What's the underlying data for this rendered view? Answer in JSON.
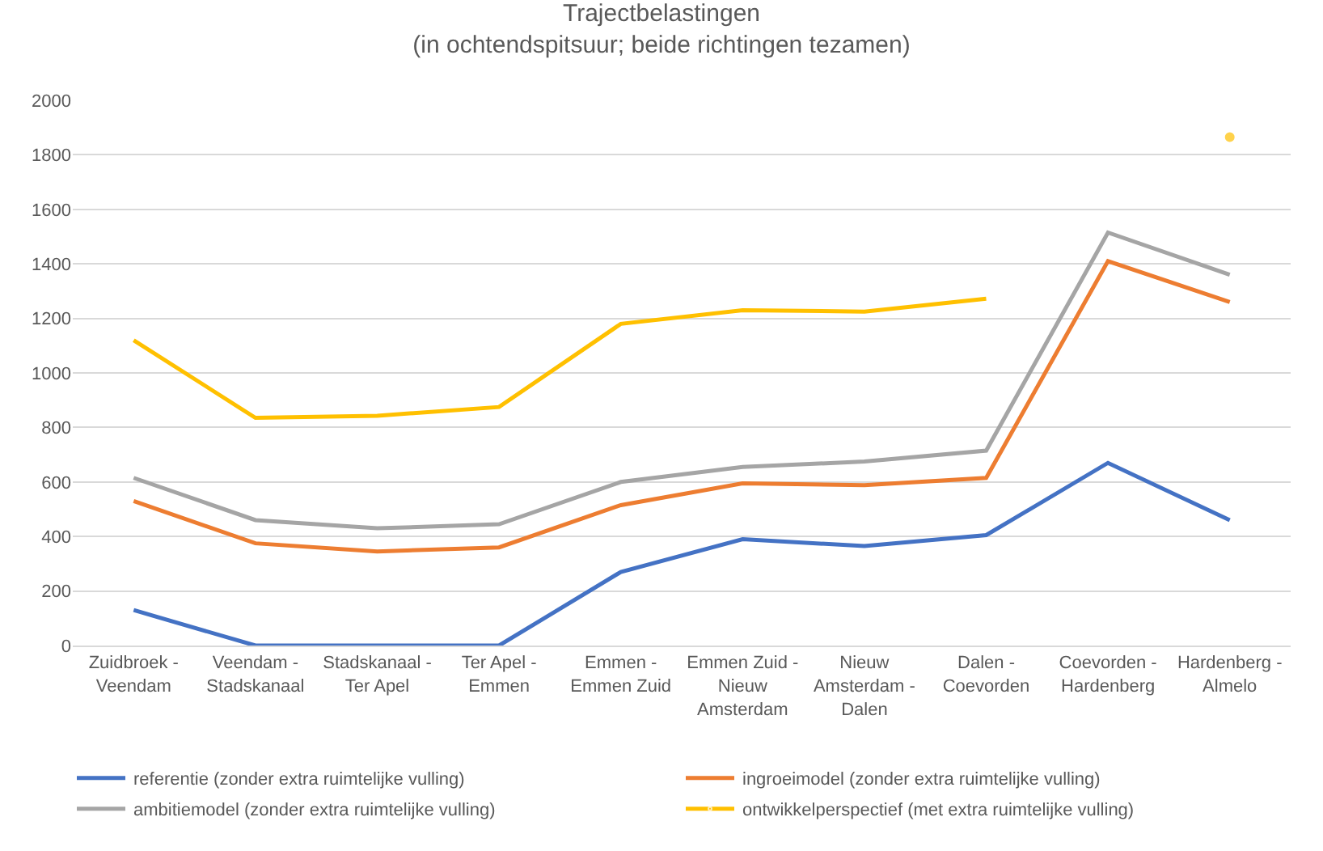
{
  "chart_data": {
    "type": "line",
    "title": "Trajectbelastingen\n(in ochtendspitsuur; beide richtingen tezamen)",
    "categories": [
      "Zuidbroek -\nVeendam",
      "Veendam -\nStadskanaal",
      "Stadskanaal -\nTer Apel",
      "Ter Apel -\nEmmen",
      "Emmen -\nEmmen Zuid",
      "Emmen Zuid -\nNieuw\nAmsterdam",
      "Nieuw\nAmsterdam -\nDalen",
      "Dalen -\nCoevorden",
      "Coevorden -\nHardenberg",
      "Hardenberg -\nAlmelo"
    ],
    "series": [
      {
        "name": "referentie (zonder extra ruimtelijke vulling)",
        "color": "#4472c4",
        "values": [
          130,
          0,
          0,
          0,
          270,
          390,
          365,
          405,
          670,
          460
        ]
      },
      {
        "name": "ingroeimodel (zonder extra ruimtelijke vulling)",
        "color": "#ed7d31",
        "values": [
          530,
          375,
          345,
          360,
          515,
          595,
          588,
          615,
          1410,
          1260
        ]
      },
      {
        "name": "ambitiemodel (zonder extra ruimtelijke vulling)",
        "color": "#a5a5a5",
        "values": [
          615,
          460,
          430,
          445,
          600,
          655,
          675,
          715,
          1515,
          1360
        ]
      },
      {
        "name": "ontwikkelperspectief (met extra ruimtelijke vulling)",
        "color": "#ffc000",
        "values": [
          1120,
          835,
          843,
          875,
          1180,
          1230,
          1225,
          1272,
          null,
          1865
        ]
      }
    ],
    "ylim": [
      0,
      2000
    ],
    "yticks": [
      0,
      200,
      400,
      600,
      800,
      1000,
      1200,
      1400,
      1600,
      1800,
      2000
    ],
    "grid": "y",
    "legend": "bottom",
    "marker": "none",
    "line_style": "solid"
  }
}
